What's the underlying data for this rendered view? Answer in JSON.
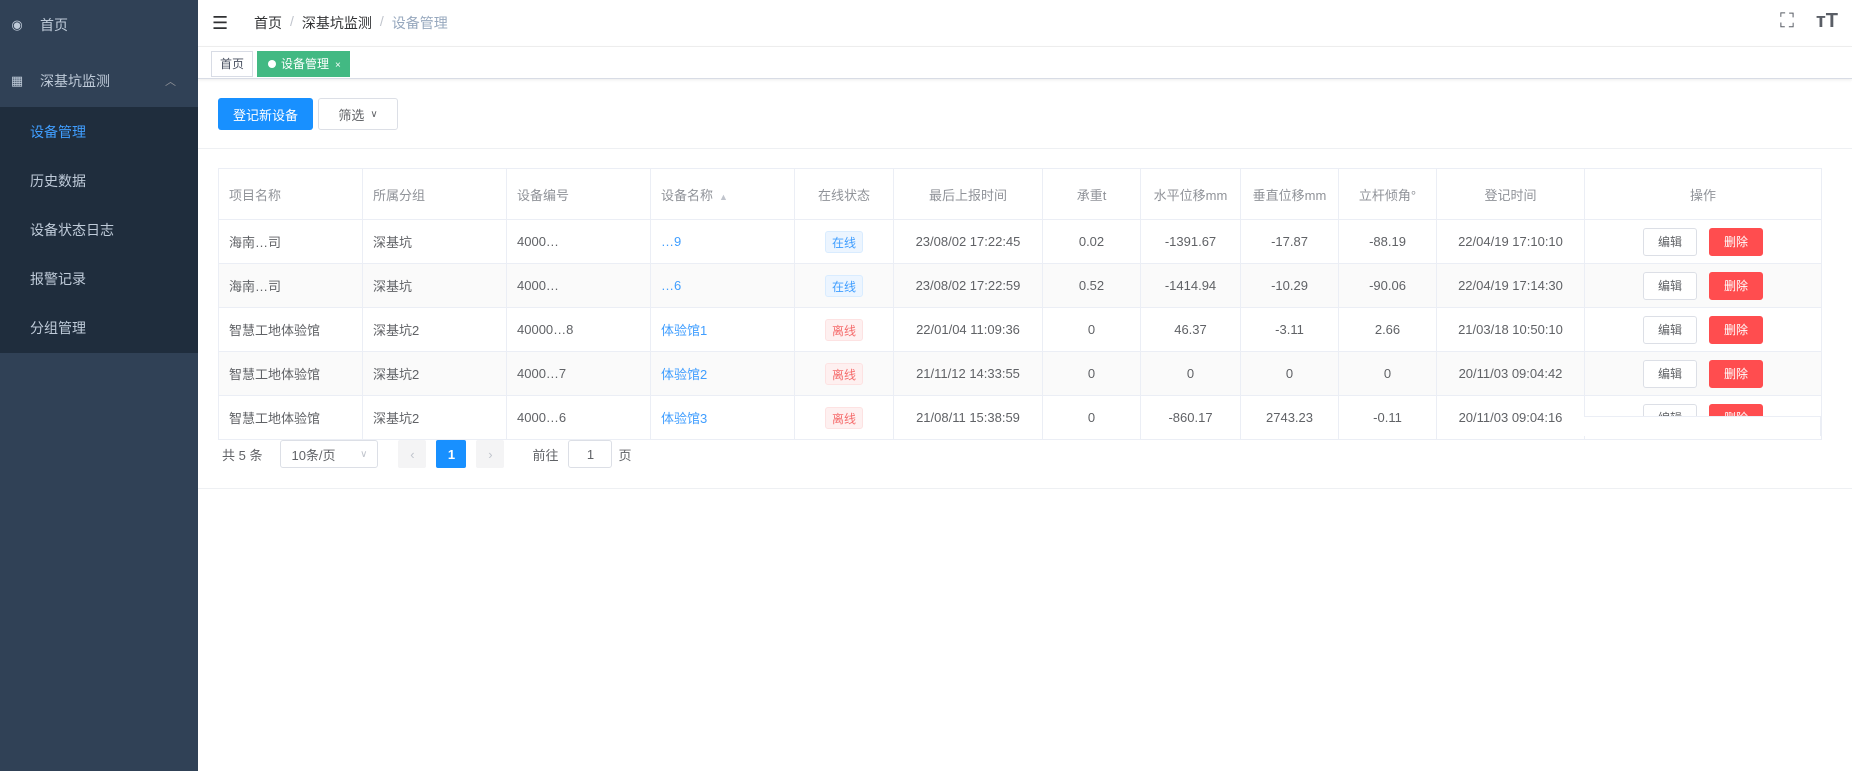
{
  "sidebar": {
    "home": {
      "label": "首页",
      "icon": "dashboard-icon"
    },
    "group": {
      "label": "深基坑监测",
      "icon": "table-icon",
      "expanded": true
    },
    "items": [
      {
        "label": "设备管理",
        "active": true
      },
      {
        "label": "历史数据"
      },
      {
        "label": "设备状态日志"
      },
      {
        "label": "报警记录"
      },
      {
        "label": "分组管理"
      }
    ]
  },
  "breadcrumb": [
    "首页",
    "深基坑监测",
    "设备管理"
  ],
  "tags": [
    {
      "label": "首页"
    },
    {
      "label": "设备管理",
      "active": true,
      "close": "×"
    }
  ],
  "toolbar": {
    "add_label": "登记新设备",
    "filter_label": "筛选"
  },
  "table": {
    "columns": [
      "项目名称",
      "所属分组",
      "设备编号",
      "设备名称",
      "在线状态",
      "最后上报时间",
      "承重t",
      "水平位移mm",
      "垂直位移mm",
      "立杆倾角°",
      "登记时间",
      "操作"
    ],
    "rows": [
      {
        "project": "海南…司",
        "group": "深基坑",
        "code": "4000…",
        "name": "…9",
        "status": "在线",
        "last": "23/08/02 17:22:45",
        "load": "0.02",
        "h": "-1391.67",
        "v": "-17.87",
        "tilt": "-88.19",
        "reg": "22/04/19 17:10:10"
      },
      {
        "project": "海南…司",
        "group": "深基坑",
        "code": "4000…",
        "name": "…6",
        "status": "在线",
        "last": "23/08/02 17:22:59",
        "load": "0.52",
        "h": "-1414.94",
        "v": "-10.29",
        "tilt": "-90.06",
        "reg": "22/04/19 17:14:30"
      },
      {
        "project": "智慧工地体验馆",
        "group": "深基坑2",
        "code": "40000…8",
        "name": "体验馆1",
        "status": "离线",
        "last": "22/01/04 11:09:36",
        "load": "0",
        "h": "46.37",
        "v": "-3.11",
        "tilt": "2.66",
        "reg": "21/03/18 10:50:10"
      },
      {
        "project": "智慧工地体验馆",
        "group": "深基坑2",
        "code": "4000…7",
        "name": "体验馆2",
        "status": "离线",
        "last": "21/11/12 14:33:55",
        "load": "0",
        "h": "0",
        "v": "0",
        "tilt": "0",
        "reg": "20/11/03 09:04:42"
      },
      {
        "project": "智慧工地体验馆",
        "group": "深基坑2",
        "code": "4000…6",
        "name": "体验馆3",
        "status": "离线",
        "last": "21/08/11 15:38:59",
        "load": "0",
        "h": "-860.17",
        "v": "2743.23",
        "tilt": "-0.11",
        "reg": "20/11/03 09:04:16"
      }
    ],
    "edit_label": "编辑",
    "delete_label": "删除"
  },
  "pagination": {
    "total": "共 5 条",
    "page_size": "10条/页",
    "current": "1",
    "goto_prefix": "前往",
    "goto_value": "1",
    "goto_suffix": "页"
  },
  "colors": {
    "sidebar": "#304156",
    "primary": "#1890ff",
    "tag_active": "#42b983",
    "danger": "#ff4d4f"
  }
}
